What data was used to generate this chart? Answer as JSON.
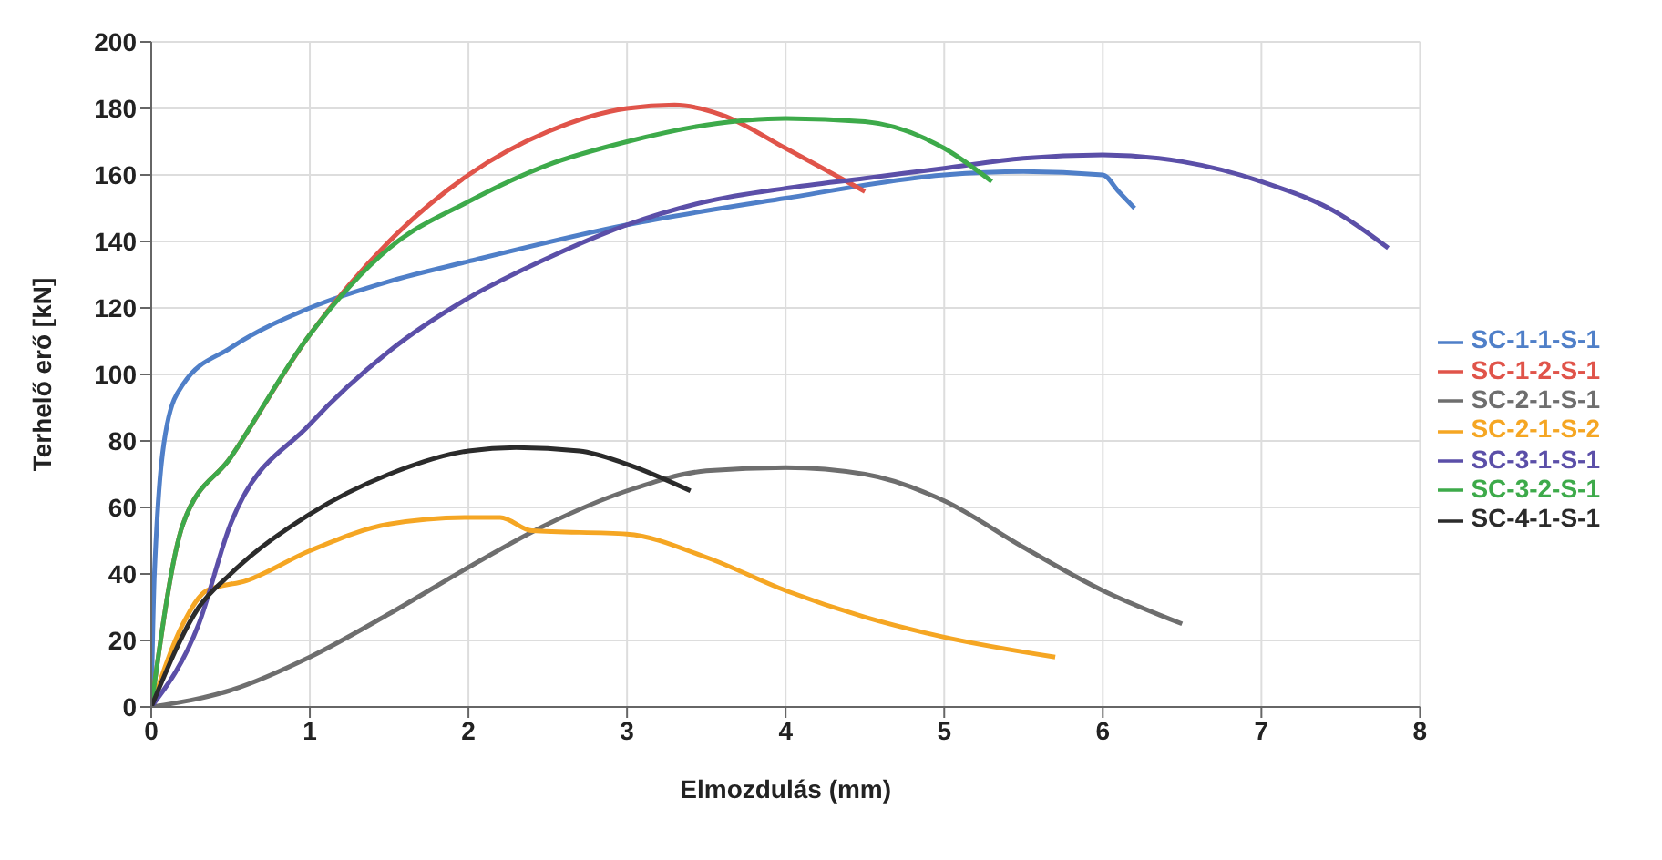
{
  "chart_data": {
    "type": "line",
    "xlabel": "Elmozdulás (mm)",
    "ylabel": "Terhelő erő [kN]",
    "xlim": [
      0,
      8
    ],
    "xticks": [
      0,
      1,
      2,
      3,
      4,
      5,
      6,
      7,
      8
    ],
    "ylim": [
      0,
      200
    ],
    "yticks": [
      0,
      20,
      40,
      60,
      80,
      100,
      120,
      140,
      160,
      180,
      200
    ],
    "grid": true,
    "legend": "right",
    "marker": "none",
    "series": [
      {
        "name": "SC-1-1-S-1",
        "color": "#4f7fc8",
        "x": [
          0,
          0.02,
          0.1,
          0.2,
          0.5,
          1,
          1.5,
          2,
          3,
          4,
          5,
          5.5,
          6,
          6.1,
          6.2
        ],
        "values": [
          0,
          40,
          85,
          97,
          108,
          120,
          128,
          134,
          145,
          153,
          160,
          161,
          160,
          155,
          150
        ]
      },
      {
        "name": "SC-1-2-S-1",
        "color": "#e0544a",
        "x": [
          0,
          0.2,
          0.5,
          1,
          1.5,
          2,
          2.5,
          3,
          3.3,
          3.6,
          4,
          4.5
        ],
        "values": [
          0,
          55,
          75,
          112,
          140,
          160,
          173,
          180,
          181,
          178,
          168,
          155
        ]
      },
      {
        "name": "SC-2-1-S-1",
        "color": "#6e6e6e",
        "x": [
          0,
          0.5,
          1,
          1.5,
          2,
          2.5,
          3,
          3.5,
          4,
          4.5,
          5,
          5.5,
          6,
          6.5
        ],
        "values": [
          0,
          5,
          15,
          28,
          42,
          55,
          65,
          71,
          72,
          70,
          62,
          48,
          35,
          25
        ]
      },
      {
        "name": "SC-2-1-S-2",
        "color": "#f5a623",
        "x": [
          0,
          0.2,
          0.35,
          0.6,
          1,
          1.5,
          2,
          2.2,
          2.4,
          3,
          3.5,
          4,
          4.5,
          5,
          5.7
        ],
        "values": [
          0,
          25,
          35,
          38,
          47,
          55,
          57,
          57,
          53,
          52,
          45,
          35,
          27,
          21,
          15
        ]
      },
      {
        "name": "SC-3-1-S-1",
        "color": "#5b4fa8",
        "x": [
          0,
          0.3,
          0.5,
          1,
          1.5,
          2,
          2.5,
          3,
          3.5,
          4,
          4.5,
          5,
          5.5,
          6,
          6.5,
          7,
          7.5,
          7.8
        ],
        "values": [
          0,
          25,
          55,
          85,
          107,
          123,
          135,
          145,
          152,
          156,
          159,
          162,
          165,
          166,
          164,
          158,
          148,
          138
        ]
      },
      {
        "name": "SC-3-2-S-1",
        "color": "#3daa4a",
        "x": [
          0,
          0.2,
          0.5,
          1,
          1.5,
          2,
          2.5,
          3,
          3.5,
          4,
          4.5,
          5,
          5.3
        ],
        "values": [
          0,
          55,
          75,
          112,
          138,
          152,
          163,
          170,
          175,
          177,
          176,
          168,
          158
        ]
      },
      {
        "name": "SC-4-1-S-1",
        "color": "#2b2b2b",
        "x": [
          0,
          0.3,
          0.5,
          1,
          1.5,
          2,
          2.3,
          2.7,
          3,
          3.4
        ],
        "values": [
          0,
          30,
          40,
          58,
          70,
          77,
          78,
          77,
          73,
          65
        ]
      }
    ]
  }
}
